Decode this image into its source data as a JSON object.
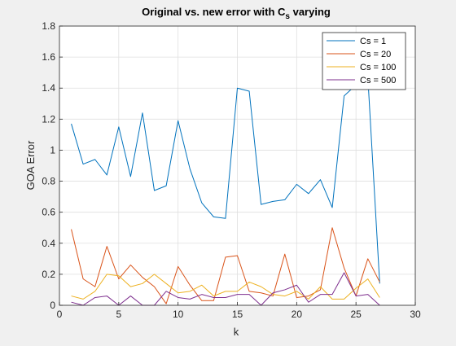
{
  "chart_data": {
    "type": "line",
    "title": "Original vs. new error with C",
    "title_subscript": "s",
    "title_suffix": " varying",
    "xlabel": "k",
    "ylabel": "GOA Error",
    "xlim": [
      0,
      30
    ],
    "ylim": [
      0,
      1.8
    ],
    "xticks": [
      0,
      5,
      10,
      15,
      20,
      25,
      30
    ],
    "yticks": [
      0,
      0.2,
      0.4,
      0.6,
      0.8,
      1,
      1.2,
      1.4,
      1.6,
      1.8
    ],
    "grid": true,
    "legend_position": "top-right",
    "x": [
      1,
      2,
      3,
      4,
      5,
      6,
      7,
      8,
      9,
      10,
      11,
      12,
      13,
      14,
      15,
      16,
      17,
      18,
      19,
      20,
      21,
      22,
      23,
      24,
      25,
      26,
      27
    ],
    "series": [
      {
        "name": "Cs = 1",
        "color": "#0072bd",
        "values": [
          1.17,
          0.91,
          0.94,
          0.84,
          1.15,
          0.83,
          1.24,
          0.74,
          0.77,
          1.19,
          0.88,
          0.66,
          0.57,
          0.56,
          1.4,
          1.38,
          0.65,
          0.67,
          0.68,
          0.78,
          0.72,
          0.81,
          0.63,
          1.35,
          1.42,
          1.47,
          0.14
        ]
      },
      {
        "name": "Cs = 20",
        "color": "#d95319",
        "values": [
          0.49,
          0.17,
          0.12,
          0.38,
          0.17,
          0.26,
          0.18,
          0.12,
          0.01,
          0.25,
          0.13,
          0.03,
          0.03,
          0.31,
          0.32,
          0.09,
          0.08,
          0.06,
          0.33,
          0.05,
          0.06,
          0.1,
          0.5,
          0.24,
          0.06,
          0.3,
          0.15
        ]
      },
      {
        "name": "Cs = 100",
        "color": "#edb120",
        "values": [
          0.06,
          0.04,
          0.09,
          0.2,
          0.19,
          0.12,
          0.14,
          0.2,
          0.14,
          0.08,
          0.09,
          0.13,
          0.06,
          0.09,
          0.09,
          0.15,
          0.12,
          0.07,
          0.06,
          0.09,
          0.04,
          0.12,
          0.04,
          0.04,
          0.11,
          0.17,
          0.05
        ]
      },
      {
        "name": "Cs = 500",
        "color": "#7e2f8e",
        "values": [
          0.02,
          0.0,
          0.05,
          0.06,
          0.0,
          0.06,
          0.0,
          0.0,
          0.09,
          0.05,
          0.04,
          0.07,
          0.05,
          0.05,
          0.07,
          0.07,
          0.0,
          0.08,
          0.1,
          0.13,
          0.02,
          0.07,
          0.07,
          0.21,
          0.06,
          0.07,
          0.0
        ]
      }
    ]
  }
}
